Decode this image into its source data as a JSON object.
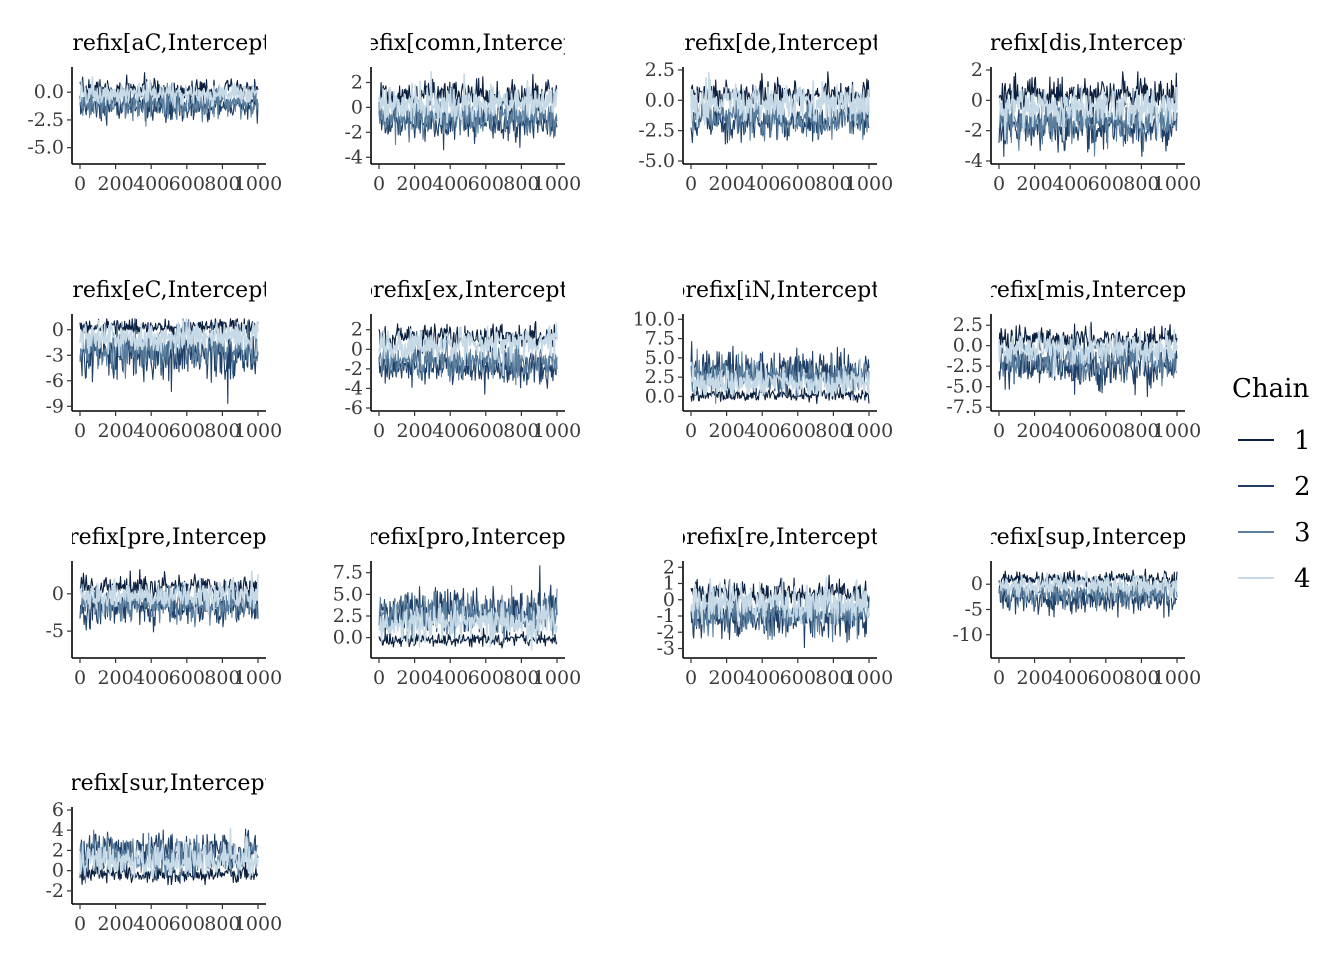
{
  "chart_data": {
    "type": "line",
    "legend": {
      "title": "Chain",
      "position": "right",
      "entries": [
        {
          "label": "1",
          "color": "#0b1f3f"
        },
        {
          "label": "2",
          "color": "#1f3f66"
        },
        {
          "label": "3",
          "color": "#5b7f9e"
        },
        {
          "label": "4",
          "color": "#c6d9e6"
        }
      ]
    },
    "x_ticks": [
      "0",
      "200",
      "400",
      "600",
      "800",
      "1000"
    ],
    "xlim": [
      0,
      1000
    ],
    "grid": false,
    "panels": [
      {
        "title": "prefix[aC,Intercept]",
        "ylim": [
          -6.2,
          2.0
        ],
        "yticks": [
          {
            "v": 0,
            "label": "0.0"
          },
          {
            "v": -2.5,
            "label": "-2.5"
          },
          {
            "v": -5,
            "label": "-5.0"
          }
        ],
        "series": [
          {
            "chain": "1",
            "mean": 0.2,
            "sd": 0.5
          },
          {
            "chain": "2",
            "mean": -1.3,
            "sd": 0.7
          },
          {
            "chain": "3",
            "mean": -1.0,
            "sd": 0.7
          },
          {
            "chain": "4",
            "mean": -0.1,
            "sd": 0.5
          }
        ]
      },
      {
        "title": "prefix[comn,Intercept]",
        "ylim": [
          -4.3,
          3.0
        ],
        "yticks": [
          {
            "v": 2,
            "label": "2"
          },
          {
            "v": 0,
            "label": "0"
          },
          {
            "v": -2,
            "label": "-2"
          },
          {
            "v": -4,
            "label": "-4"
          }
        ],
        "series": [
          {
            "chain": "1",
            "mean": 1.0,
            "sd": 0.6
          },
          {
            "chain": "2",
            "mean": -1.2,
            "sd": 0.7
          },
          {
            "chain": "3",
            "mean": -0.8,
            "sd": 0.8
          },
          {
            "chain": "4",
            "mean": 0.4,
            "sd": 0.7
          }
        ]
      },
      {
        "title": "prefix[de,Intercept]",
        "ylim": [
          -5.0,
          2.5
        ],
        "yticks": [
          {
            "v": 2.5,
            "label": "2.5"
          },
          {
            "v": 0,
            "label": "0.0"
          },
          {
            "v": -2.5,
            "label": "-2.5"
          },
          {
            "v": -5,
            "label": "-5.0"
          }
        ],
        "series": [
          {
            "chain": "1",
            "mean": 0.5,
            "sd": 0.6
          },
          {
            "chain": "2",
            "mean": -1.8,
            "sd": 0.8
          },
          {
            "chain": "3",
            "mean": -1.4,
            "sd": 0.8
          },
          {
            "chain": "4",
            "mean": -0.2,
            "sd": 0.8
          }
        ]
      },
      {
        "title": "prefix[dis,Intercept]",
        "ylim": [
          -4.0,
          2.0
        ],
        "yticks": [
          {
            "v": 2,
            "label": "2"
          },
          {
            "v": 0,
            "label": "0"
          },
          {
            "v": -2,
            "label": "-2"
          },
          {
            "v": -4,
            "label": "-4"
          }
        ],
        "series": [
          {
            "chain": "1",
            "mean": 0.4,
            "sd": 0.6
          },
          {
            "chain": "2",
            "mean": -1.8,
            "sd": 0.7
          },
          {
            "chain": "3",
            "mean": -1.4,
            "sd": 0.7
          },
          {
            "chain": "4",
            "mean": -0.4,
            "sd": 0.7
          }
        ]
      },
      {
        "title": "prefix[eC,Intercept]",
        "ylim": [
          -9.2,
          1.5
        ],
        "yticks": [
          {
            "v": 0,
            "label": "0"
          },
          {
            "v": -3,
            "label": "-3"
          },
          {
            "v": -6,
            "label": "-6"
          },
          {
            "v": -9,
            "label": "-9"
          }
        ],
        "series": [
          {
            "chain": "1",
            "mean": 0.3,
            "sd": 0.5
          },
          {
            "chain": "2",
            "mean": -3.0,
            "sd": 1.5
          },
          {
            "chain": "3",
            "mean": -2.2,
            "sd": 1.2
          },
          {
            "chain": "4",
            "mean": -0.8,
            "sd": 0.9
          }
        ]
      },
      {
        "title": "prefix[ex,Intercept]",
        "ylim": [
          -6.0,
          3.3
        ],
        "yticks": [
          {
            "v": 2,
            "label": "2"
          },
          {
            "v": 0,
            "label": "0"
          },
          {
            "v": -2,
            "label": "-2"
          },
          {
            "v": -4,
            "label": "-4"
          },
          {
            "v": -6,
            "label": "-6"
          }
        ],
        "series": [
          {
            "chain": "1",
            "mean": 1.3,
            "sd": 0.7
          },
          {
            "chain": "2",
            "mean": -1.8,
            "sd": 0.9
          },
          {
            "chain": "3",
            "mean": -1.2,
            "sd": 0.9
          },
          {
            "chain": "4",
            "mean": 0.6,
            "sd": 0.8
          }
        ]
      },
      {
        "title": "prefix[iN,Intercept]",
        "ylim": [
          -1.5,
          10.3
        ],
        "yticks": [
          {
            "v": 10,
            "label": "10.0"
          },
          {
            "v": 7.5,
            "label": "7.5"
          },
          {
            "v": 5,
            "label": "5.0"
          },
          {
            "v": 2.5,
            "label": "2.5"
          },
          {
            "v": 0,
            "label": "0.0"
          }
        ],
        "series": [
          {
            "chain": "1",
            "mean": 0.2,
            "sd": 0.4
          },
          {
            "chain": "2",
            "mean": 3.2,
            "sd": 1.4
          },
          {
            "chain": "3",
            "mean": 2.6,
            "sd": 1.2
          },
          {
            "chain": "4",
            "mean": 1.8,
            "sd": 1.0
          }
        ]
      },
      {
        "title": "prefix[mis,Intercept]",
        "ylim": [
          -7.6,
          3.5
        ],
        "yticks": [
          {
            "v": 2.5,
            "label": "2.5"
          },
          {
            "v": 0,
            "label": "0.0"
          },
          {
            "v": -2.5,
            "label": "-2.5"
          },
          {
            "v": -5,
            "label": "-5.0"
          },
          {
            "v": -7.5,
            "label": "-7.5"
          }
        ],
        "series": [
          {
            "chain": "1",
            "mean": 0.8,
            "sd": 0.7
          },
          {
            "chain": "2",
            "mean": -2.5,
            "sd": 1.3
          },
          {
            "chain": "3",
            "mean": -1.8,
            "sd": 1.1
          },
          {
            "chain": "4",
            "mean": -0.3,
            "sd": 1.0
          }
        ]
      },
      {
        "title": "prefix[pre,Intercept]",
        "ylim": [
          -8.2,
          4.0
        ],
        "yticks": [
          {
            "v": 0,
            "label": "0"
          },
          {
            "v": -5,
            "label": "-5"
          }
        ],
        "series": [
          {
            "chain": "1",
            "mean": 1.0,
            "sd": 0.8
          },
          {
            "chain": "2",
            "mean": -2.0,
            "sd": 1.2
          },
          {
            "chain": "3",
            "mean": -1.4,
            "sd": 1.2
          },
          {
            "chain": "4",
            "mean": -0.2,
            "sd": 1.0
          }
        ]
      },
      {
        "title": "prefix[pro,Intercept]",
        "ylim": [
          -2.0,
          8.5
        ],
        "yticks": [
          {
            "v": 7.5,
            "label": "7.5"
          },
          {
            "v": 5,
            "label": "5.0"
          },
          {
            "v": 2.5,
            "label": "2.5"
          },
          {
            "v": 0,
            "label": "0.0"
          }
        ],
        "series": [
          {
            "chain": "1",
            "mean": -0.2,
            "sd": 0.4
          },
          {
            "chain": "2",
            "mean": 3.2,
            "sd": 1.3
          },
          {
            "chain": "3",
            "mean": 2.6,
            "sd": 1.2
          },
          {
            "chain": "4",
            "mean": 1.8,
            "sd": 1.0
          }
        ]
      },
      {
        "title": "prefix[re,Intercept]",
        "ylim": [
          -3.4,
          2.2
        ],
        "yticks": [
          {
            "v": 2,
            "label": "2"
          },
          {
            "v": 1,
            "label": "1"
          },
          {
            "v": 0,
            "label": "0"
          },
          {
            "v": -1,
            "label": "-1"
          },
          {
            "v": -2,
            "label": "-2"
          },
          {
            "v": -3,
            "label": "-3"
          }
        ],
        "series": [
          {
            "chain": "1",
            "mean": 0.4,
            "sd": 0.4
          },
          {
            "chain": "2",
            "mean": -1.2,
            "sd": 0.6
          },
          {
            "chain": "3",
            "mean": -0.8,
            "sd": 0.6
          },
          {
            "chain": "4",
            "mean": -0.2,
            "sd": 0.6
          }
        ]
      },
      {
        "title": "prefix[sup,Intercept]",
        "ylim": [
          -14.0,
          4.0
        ],
        "yticks": [
          {
            "v": 0,
            "label": "0"
          },
          {
            "v": -5,
            "label": "-5"
          },
          {
            "v": -10,
            "label": "-10"
          }
        ],
        "series": [
          {
            "chain": "1",
            "mean": 1.0,
            "sd": 0.7
          },
          {
            "chain": "2",
            "mean": -2.8,
            "sd": 1.6
          },
          {
            "chain": "3",
            "mean": -1.8,
            "sd": 1.3
          },
          {
            "chain": "4",
            "mean": -0.3,
            "sd": 1.0
          }
        ]
      },
      {
        "title": "prefix[sur,Intercept]",
        "ylim": [
          -3.0,
          6.0
        ],
        "yticks": [
          {
            "v": 6,
            "label": "6"
          },
          {
            "v": 4,
            "label": "4"
          },
          {
            "v": 2,
            "label": "2"
          },
          {
            "v": 0,
            "label": "0"
          },
          {
            "v": -2,
            "label": "-2"
          }
        ],
        "series": [
          {
            "chain": "1",
            "mean": -0.3,
            "sd": 0.5
          },
          {
            "chain": "2",
            "mean": 2.0,
            "sd": 1.0
          },
          {
            "chain": "3",
            "mean": 1.4,
            "sd": 1.0
          },
          {
            "chain": "4",
            "mean": 1.0,
            "sd": 0.9
          }
        ]
      }
    ]
  }
}
